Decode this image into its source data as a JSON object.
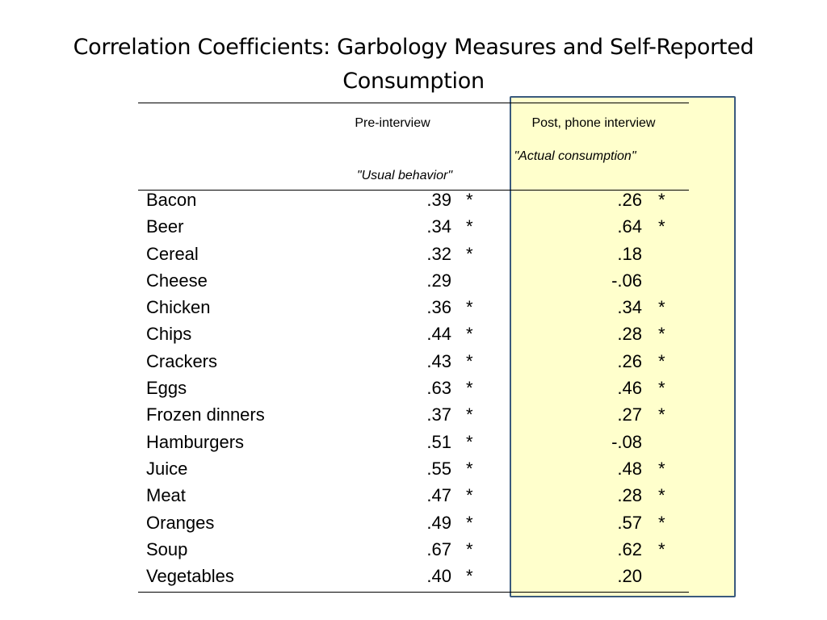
{
  "title": "Correlation Coefficients: Garbology Measures and Self-Reported Consumption",
  "headers": {
    "pre": "Pre-interview",
    "post": "Post, phone interview",
    "pre_sub": "\"Usual behavior\"",
    "post_sub": "\"Actual consumption\""
  },
  "colors": {
    "highlight_fill": "#ffffcc",
    "highlight_border": "#3a5a7e"
  },
  "rows": [
    {
      "item": "Bacon",
      "pre": ".39",
      "pre_sig": "*",
      "post": ".26",
      "post_sig": "*"
    },
    {
      "item": "Beer",
      "pre": ".34",
      "pre_sig": "*",
      "post": ".64",
      "post_sig": "*"
    },
    {
      "item": "Cereal",
      "pre": ".32",
      "pre_sig": "*",
      "post": ".18",
      "post_sig": ""
    },
    {
      "item": "Cheese",
      "pre": ".29",
      "pre_sig": "",
      "post": "-.06",
      "post_sig": ""
    },
    {
      "item": "Chicken",
      "pre": ".36",
      "pre_sig": "*",
      "post": ".34",
      "post_sig": "*"
    },
    {
      "item": "Chips",
      "pre": ".44",
      "pre_sig": "*",
      "post": ".28",
      "post_sig": "*"
    },
    {
      "item": "Crackers",
      "pre": ".43",
      "pre_sig": "*",
      "post": ".26",
      "post_sig": "*"
    },
    {
      "item": "Eggs",
      "pre": ".63",
      "pre_sig": "*",
      "post": ".46",
      "post_sig": "*"
    },
    {
      "item": "Frozen dinners",
      "pre": ".37",
      "pre_sig": "*",
      "post": ".27",
      "post_sig": "*"
    },
    {
      "item": "Hamburgers",
      "pre": ".51",
      "pre_sig": "*",
      "post": "-.08",
      "post_sig": ""
    },
    {
      "item": "Juice",
      "pre": ".55",
      "pre_sig": "*",
      "post": ".48",
      "post_sig": "*"
    },
    {
      "item": "Meat",
      "pre": ".47",
      "pre_sig": "*",
      "post": ".28",
      "post_sig": "*"
    },
    {
      "item": "Oranges",
      "pre": ".49",
      "pre_sig": "*",
      "post": ".57",
      "post_sig": "*"
    },
    {
      "item": "Soup",
      "pre": ".67",
      "pre_sig": "*",
      "post": ".62",
      "post_sig": "*"
    },
    {
      "item": "Vegetables",
      "pre": ".40",
      "pre_sig": "*",
      "post": ".20",
      "post_sig": ""
    }
  ]
}
